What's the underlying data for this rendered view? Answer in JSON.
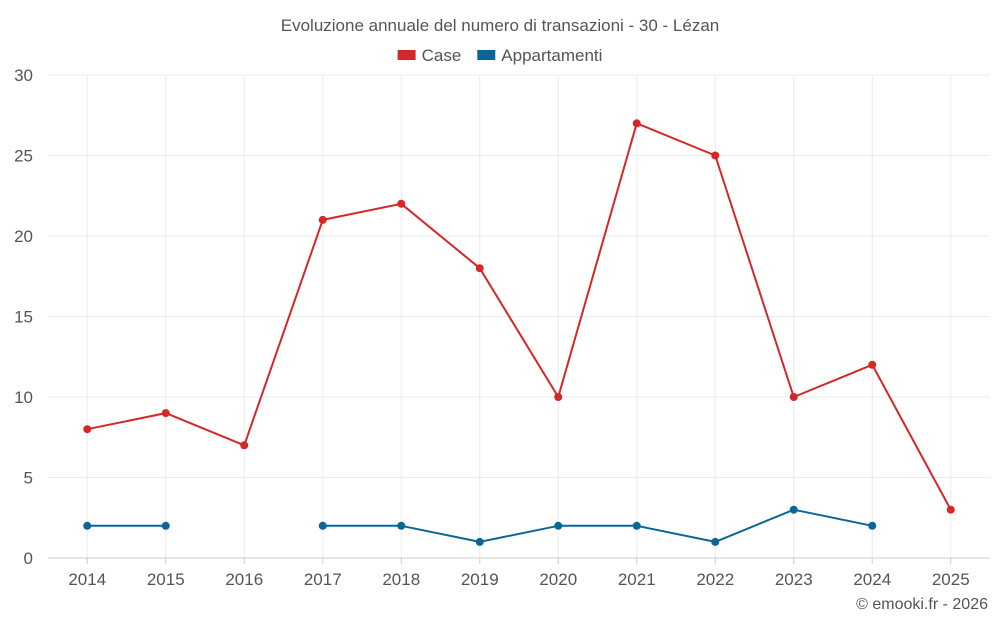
{
  "chart_data": {
    "type": "line",
    "title": "Evoluzione annuale del numero di transazioni - 30 - Lézan",
    "categories": [
      "2014",
      "2015",
      "2016",
      "2017",
      "2018",
      "2019",
      "2020",
      "2021",
      "2022",
      "2023",
      "2024",
      "2025"
    ],
    "ylim": [
      0,
      30
    ],
    "yticks": [
      "0",
      "5",
      "10",
      "15",
      "20",
      "25",
      "30"
    ],
    "grid": true,
    "legend_position": "top-center",
    "series": [
      {
        "name": "Case",
        "color": "#d62728",
        "values": [
          8,
          9,
          7,
          21,
          22,
          18,
          10,
          27,
          25,
          10,
          12,
          3
        ]
      },
      {
        "name": "Appartamenti",
        "color": "#0a6699",
        "values": [
          2,
          2,
          null,
          2,
          2,
          1,
          2,
          2,
          1,
          3,
          2,
          null
        ]
      }
    ],
    "credit": "© emooki.fr - 2026"
  }
}
